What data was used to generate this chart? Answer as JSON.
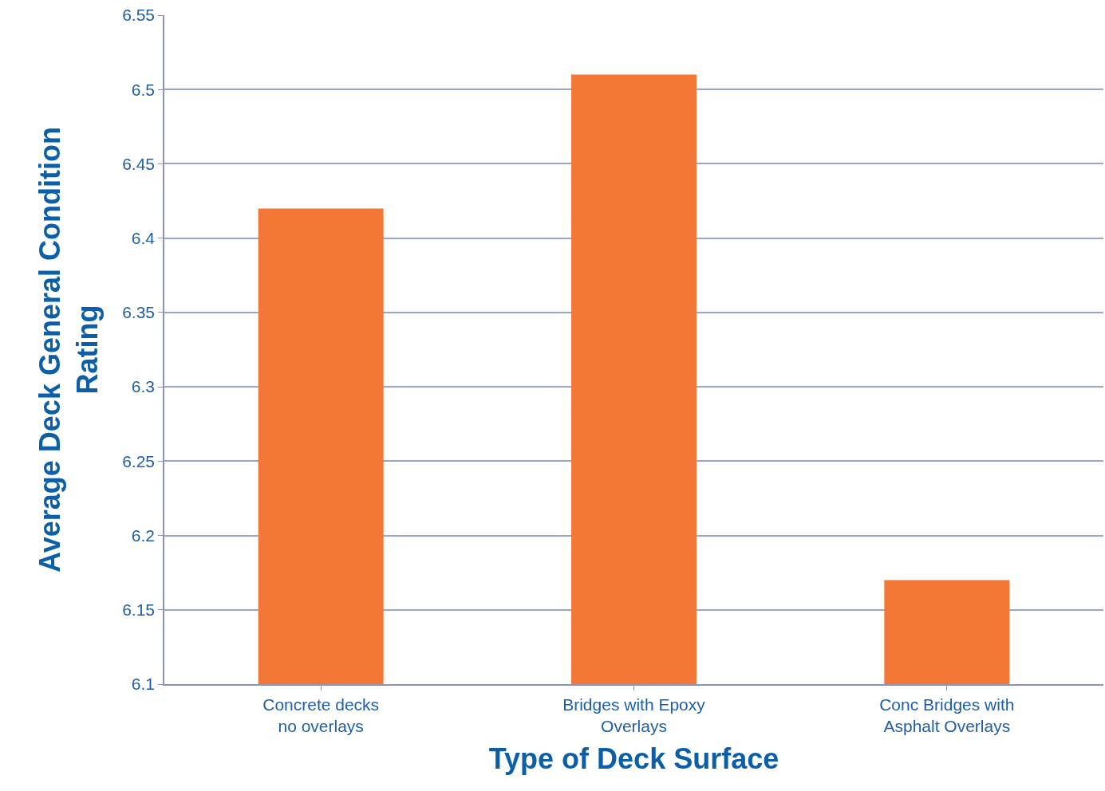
{
  "chart_data": {
    "type": "bar",
    "xlabel": "Type of Deck Surface",
    "ylabel": "Average Deck General Condition\nRating",
    "categories": [
      "Concrete decks\nno overlays",
      "Bridges with Epoxy\nOverlays",
      "Conc Bridges with\nAsphalt Overlays"
    ],
    "values": [
      6.42,
      6.51,
      6.17
    ],
    "color": "#f37736",
    "ylim": [
      6.1,
      6.55
    ],
    "yticks": [
      6.1,
      6.15,
      6.2,
      6.25,
      6.3,
      6.35,
      6.4,
      6.45,
      6.5,
      6.55
    ],
    "grid": "y",
    "legend": false
  }
}
